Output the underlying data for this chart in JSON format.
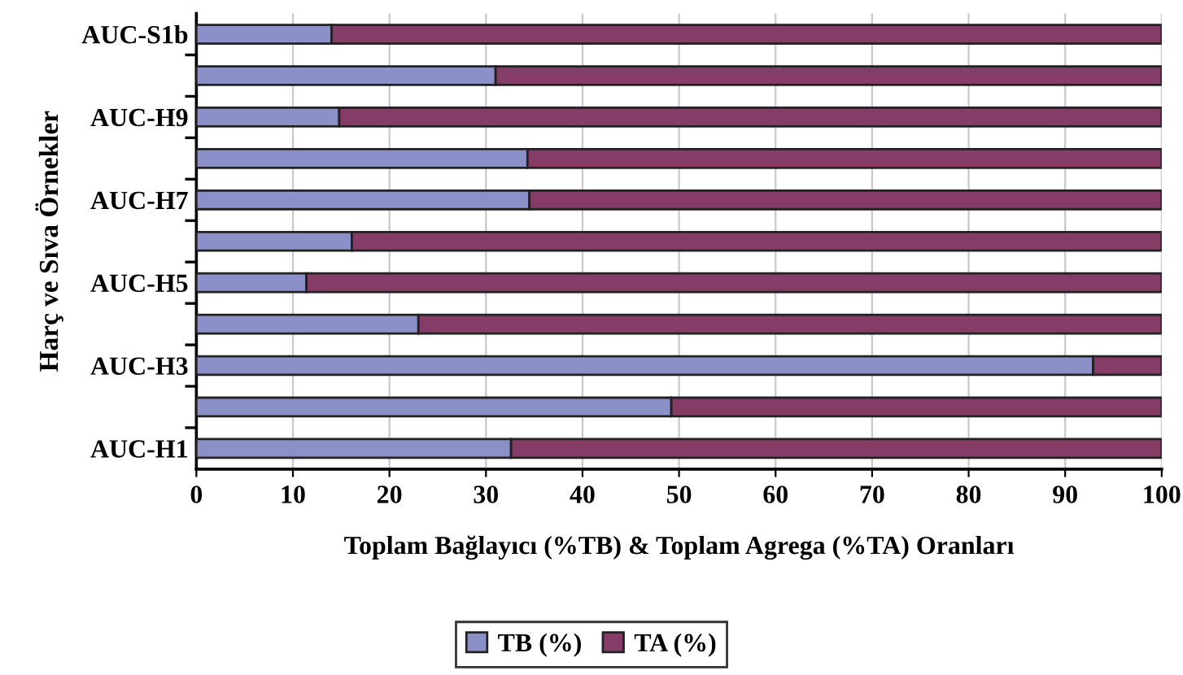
{
  "chart_data": {
    "type": "bar",
    "orientation": "horizontal",
    "stacked": true,
    "xlabel": "Toplam Bağlayıcı (%TB) & Toplam Agrega (%TA) Oranları",
    "ylabel": "Harç ve Sıva Örnekler",
    "categories": [
      "AUC-S1b",
      null,
      "AUC-H9",
      null,
      "AUC-H7",
      null,
      "AUC-H5",
      null,
      "AUC-H3",
      null,
      "AUC-H1"
    ],
    "series": [
      {
        "name": "TB (%)",
        "color": "#8c90c8",
        "values": [
          14.0,
          31.0,
          14.8,
          34.3,
          34.5,
          16.1,
          11.4,
          23.0,
          92.9,
          49.2,
          32.6
        ]
      },
      {
        "name": "TA (%)",
        "color": "#853c66",
        "values": [
          86.0,
          69.0,
          85.2,
          65.7,
          65.5,
          83.9,
          88.6,
          77.0,
          7.1,
          50.8,
          67.4
        ]
      }
    ],
    "xlim": [
      0,
      100
    ],
    "xticks": [
      0,
      10,
      20,
      30,
      40,
      50,
      60,
      70,
      80,
      90,
      100
    ],
    "grid": "x",
    "legend": "bottom"
  }
}
